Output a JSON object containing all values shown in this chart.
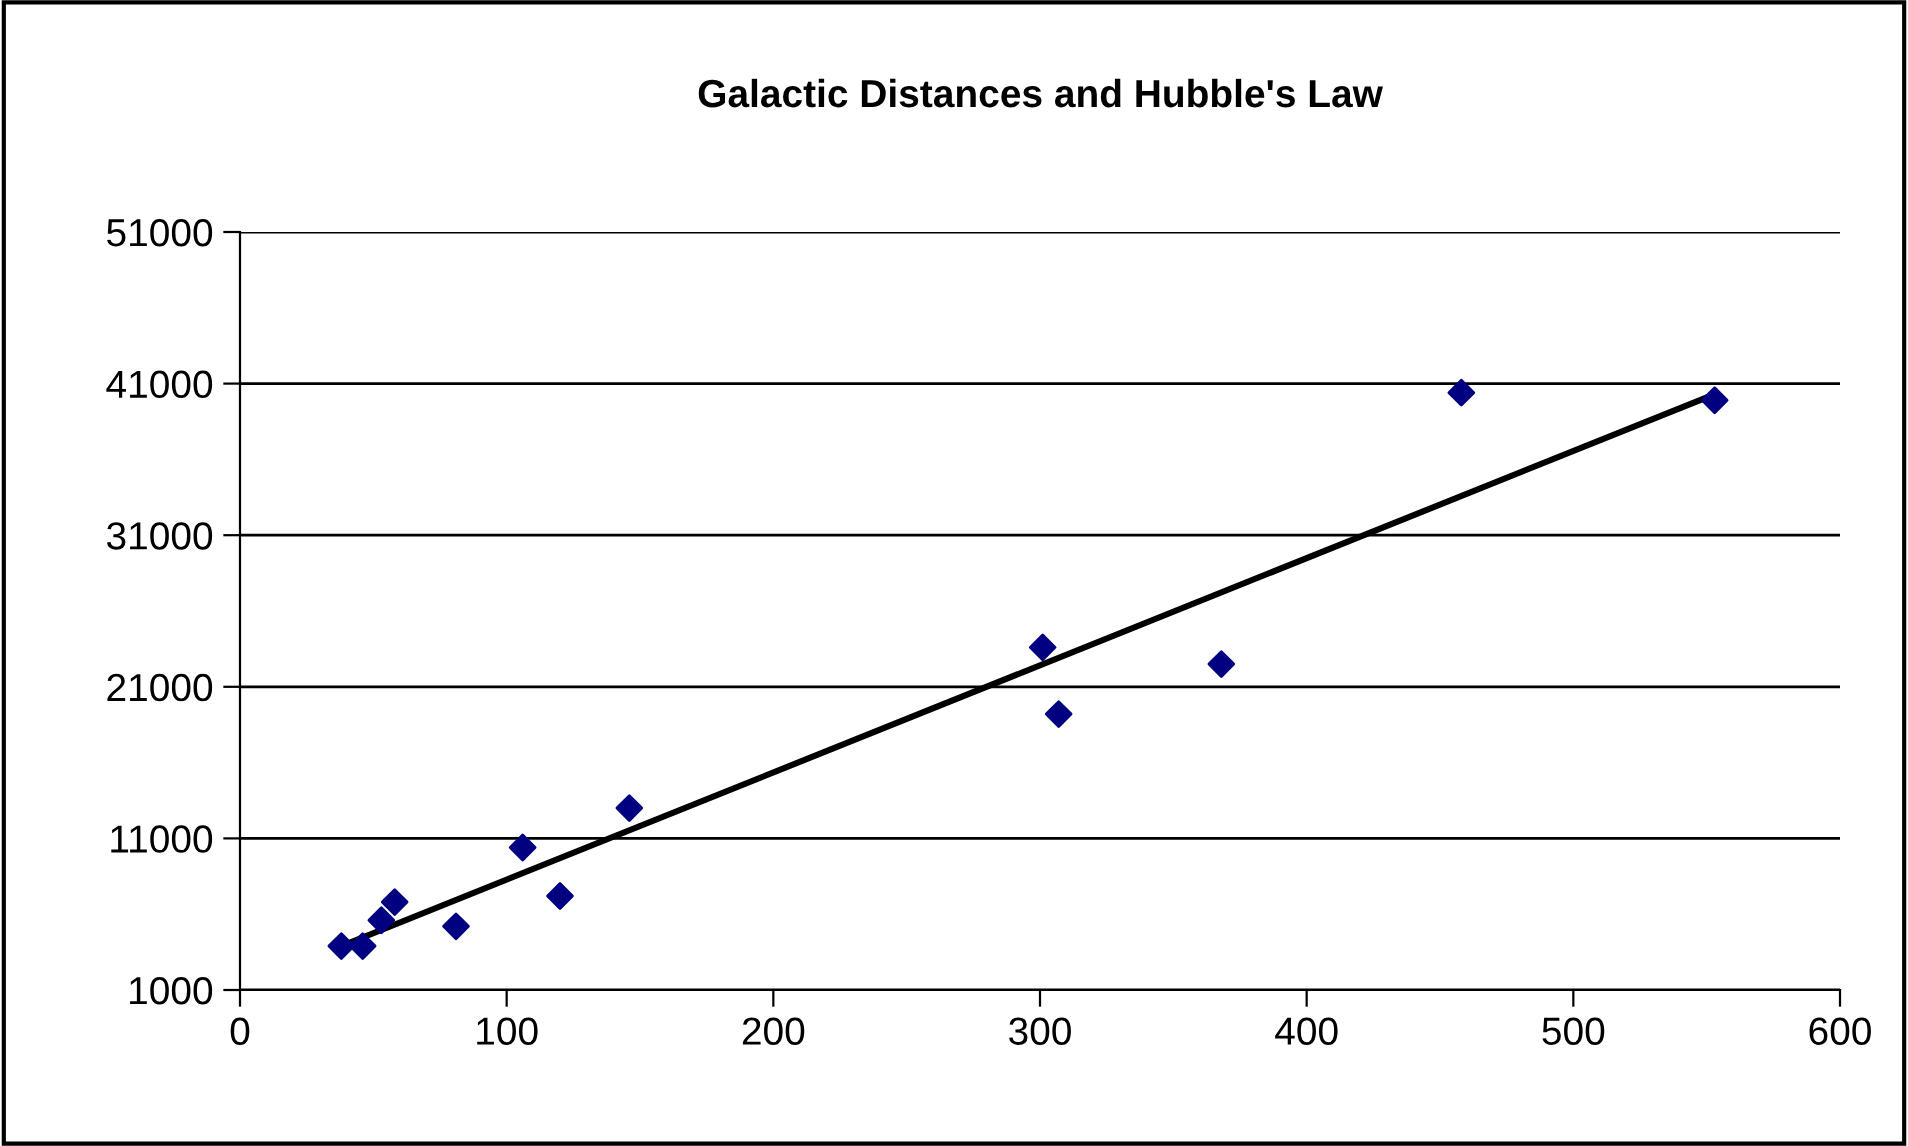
{
  "chart_data": {
    "type": "scatter",
    "title": "Galactic Distances and Hubble's Law",
    "xlim": [
      0,
      600
    ],
    "xticks": [
      0,
      100,
      200,
      300,
      400,
      500,
      600
    ],
    "ylim": [
      1000,
      51000
    ],
    "yticks": [
      1000,
      11000,
      21000,
      31000,
      41000,
      51000
    ],
    "grid": "y",
    "legend": false,
    "series": [
      {
        "marker": "diamond",
        "color": "#000080",
        "x": [
          38,
          46,
          53,
          58,
          81,
          106,
          120,
          146,
          301,
          307,
          368,
          458,
          553
        ],
        "values": [
          3900,
          3900,
          5600,
          6800,
          5200,
          10400,
          7200,
          13000,
          23600,
          19200,
          22500,
          40400,
          39900
        ]
      },
      {
        "type": "line",
        "marker": "none",
        "color": "#000000",
        "x": [
          38,
          553
        ],
        "values": [
          3900,
          40300
        ]
      }
    ]
  }
}
